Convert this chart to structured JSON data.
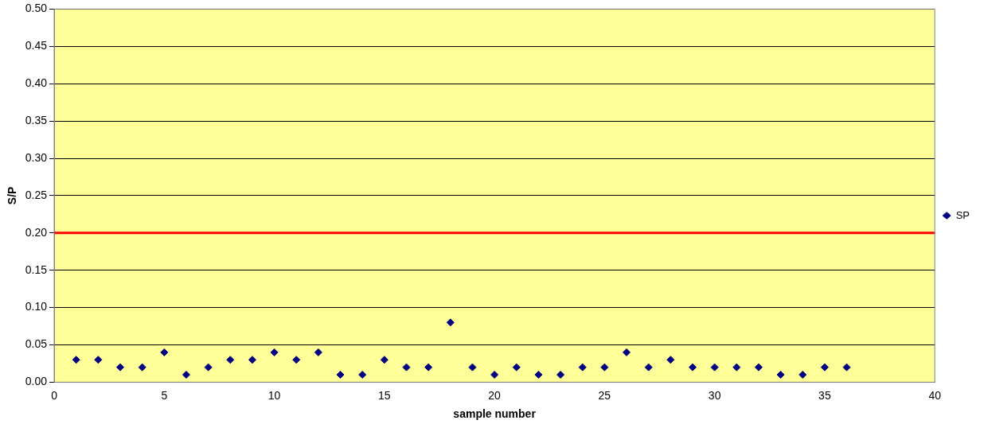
{
  "chart_data": {
    "type": "scatter",
    "xlabel": "sample number",
    "ylabel": "S/P",
    "x": [
      1,
      2,
      3,
      4,
      5,
      6,
      7,
      8,
      9,
      10,
      11,
      12,
      13,
      14,
      15,
      16,
      17,
      18,
      19,
      20,
      21,
      22,
      23,
      24,
      25,
      26,
      27,
      28,
      29,
      30,
      31,
      32,
      33,
      34,
      35,
      36
    ],
    "series": [
      {
        "name": "SP",
        "color": "#000080",
        "values": [
          0.03,
          0.03,
          0.02,
          0.02,
          0.04,
          0.01,
          0.02,
          0.03,
          0.03,
          0.04,
          0.03,
          0.04,
          0.01,
          0.01,
          0.03,
          0.02,
          0.02,
          0.08,
          0.02,
          0.01,
          0.02,
          0.01,
          0.01,
          0.02,
          0.02,
          0.04,
          0.02,
          0.03,
          0.02,
          0.02,
          0.02,
          0.02,
          0.01,
          0.01,
          0.02,
          0.02
        ]
      }
    ],
    "xlim": [
      0,
      40
    ],
    "xticks": [
      0,
      5,
      10,
      15,
      20,
      25,
      30,
      35,
      40
    ],
    "ylim": [
      0,
      0.5
    ],
    "yticks": [
      {
        "value": 0,
        "label": "0.00"
      },
      {
        "value": 0.05,
        "label": "0.05"
      },
      {
        "value": 0.1,
        "label": "0.10"
      },
      {
        "value": 0.15,
        "label": "0.15"
      },
      {
        "value": 0.2,
        "label": "0.20"
      },
      {
        "value": 0.25,
        "label": "0.25"
      },
      {
        "value": 0.3,
        "label": "0.30"
      },
      {
        "value": 0.35,
        "label": "0.35"
      },
      {
        "value": 0.4,
        "label": "0.40"
      },
      {
        "value": 0.45,
        "label": "0.45"
      },
      {
        "value": 0.5,
        "label": "0.50"
      }
    ],
    "ref_lines": [
      {
        "axis": "y",
        "value": 0.2,
        "color": "#ff0000"
      }
    ],
    "grid": "y",
    "legend": "right",
    "marker": "diamond"
  }
}
